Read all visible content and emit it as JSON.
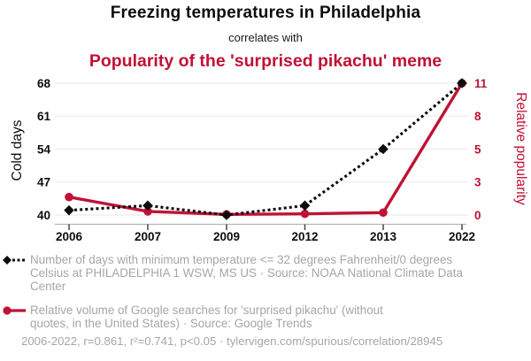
{
  "colors": {
    "red": "#c01236",
    "black": "#0d0d0d",
    "gray_text": "#a6a6a6",
    "gridline": "#ebebeb",
    "axis_line": "#b5b5b5",
    "tick_mark": "#444444"
  },
  "header": {
    "title": "Freezing temperatures in Philadelphia",
    "connector": "correlates with",
    "subtitle": "Popularity of the 'surprised pikachu' meme"
  },
  "chart_data": {
    "type": "line",
    "categories": [
      "2006",
      "2007",
      "2009",
      "2012",
      "2013",
      "2022"
    ],
    "series": [
      {
        "name": "Cold days",
        "axis": "left",
        "color": "#0d0d0d",
        "line_style": "dotted",
        "marker": "diamond",
        "values": [
          41,
          42,
          40,
          42,
          54,
          68
        ]
      },
      {
        "name": "Relative popularity",
        "axis": "right",
        "color": "#c01236",
        "line_style": "solid",
        "marker": "circle",
        "values": [
          1.5,
          0.3,
          0.05,
          0.1,
          0.2,
          11
        ]
      }
    ],
    "left_axis": {
      "label": "Cold days",
      "ticks": [
        40,
        47,
        54,
        61,
        68
      ],
      "range": [
        40,
        68
      ]
    },
    "right_axis": {
      "label": "Relative popularity",
      "ticks": [
        0,
        3,
        5,
        8,
        11
      ],
      "range": [
        0,
        11
      ]
    },
    "grid": true,
    "legend_position": "below"
  },
  "legend": {
    "items": [
      {
        "marker": "diamond-dotted",
        "color": "#0d0d0d",
        "lines": [
          "Number of days with minimum temperature <= 32 degrees Fahrenheit/0 degrees",
          "Celsius at PHILADELPHIA 1 WSW, MS US · Source: NOAA National Climate Data",
          "Center"
        ]
      },
      {
        "marker": "circle-solid",
        "color": "#c01236",
        "lines": [
          "Relative volume of Google searches for 'surprised pikachu' (without",
          "quotes, in the United States) · Source: Google Trends"
        ]
      }
    ]
  },
  "footer": {
    "stats": "2006-2022, r=0.861, r²=0.741, p<0.05 · tylervigen.com/spurious/correlation/28945"
  }
}
